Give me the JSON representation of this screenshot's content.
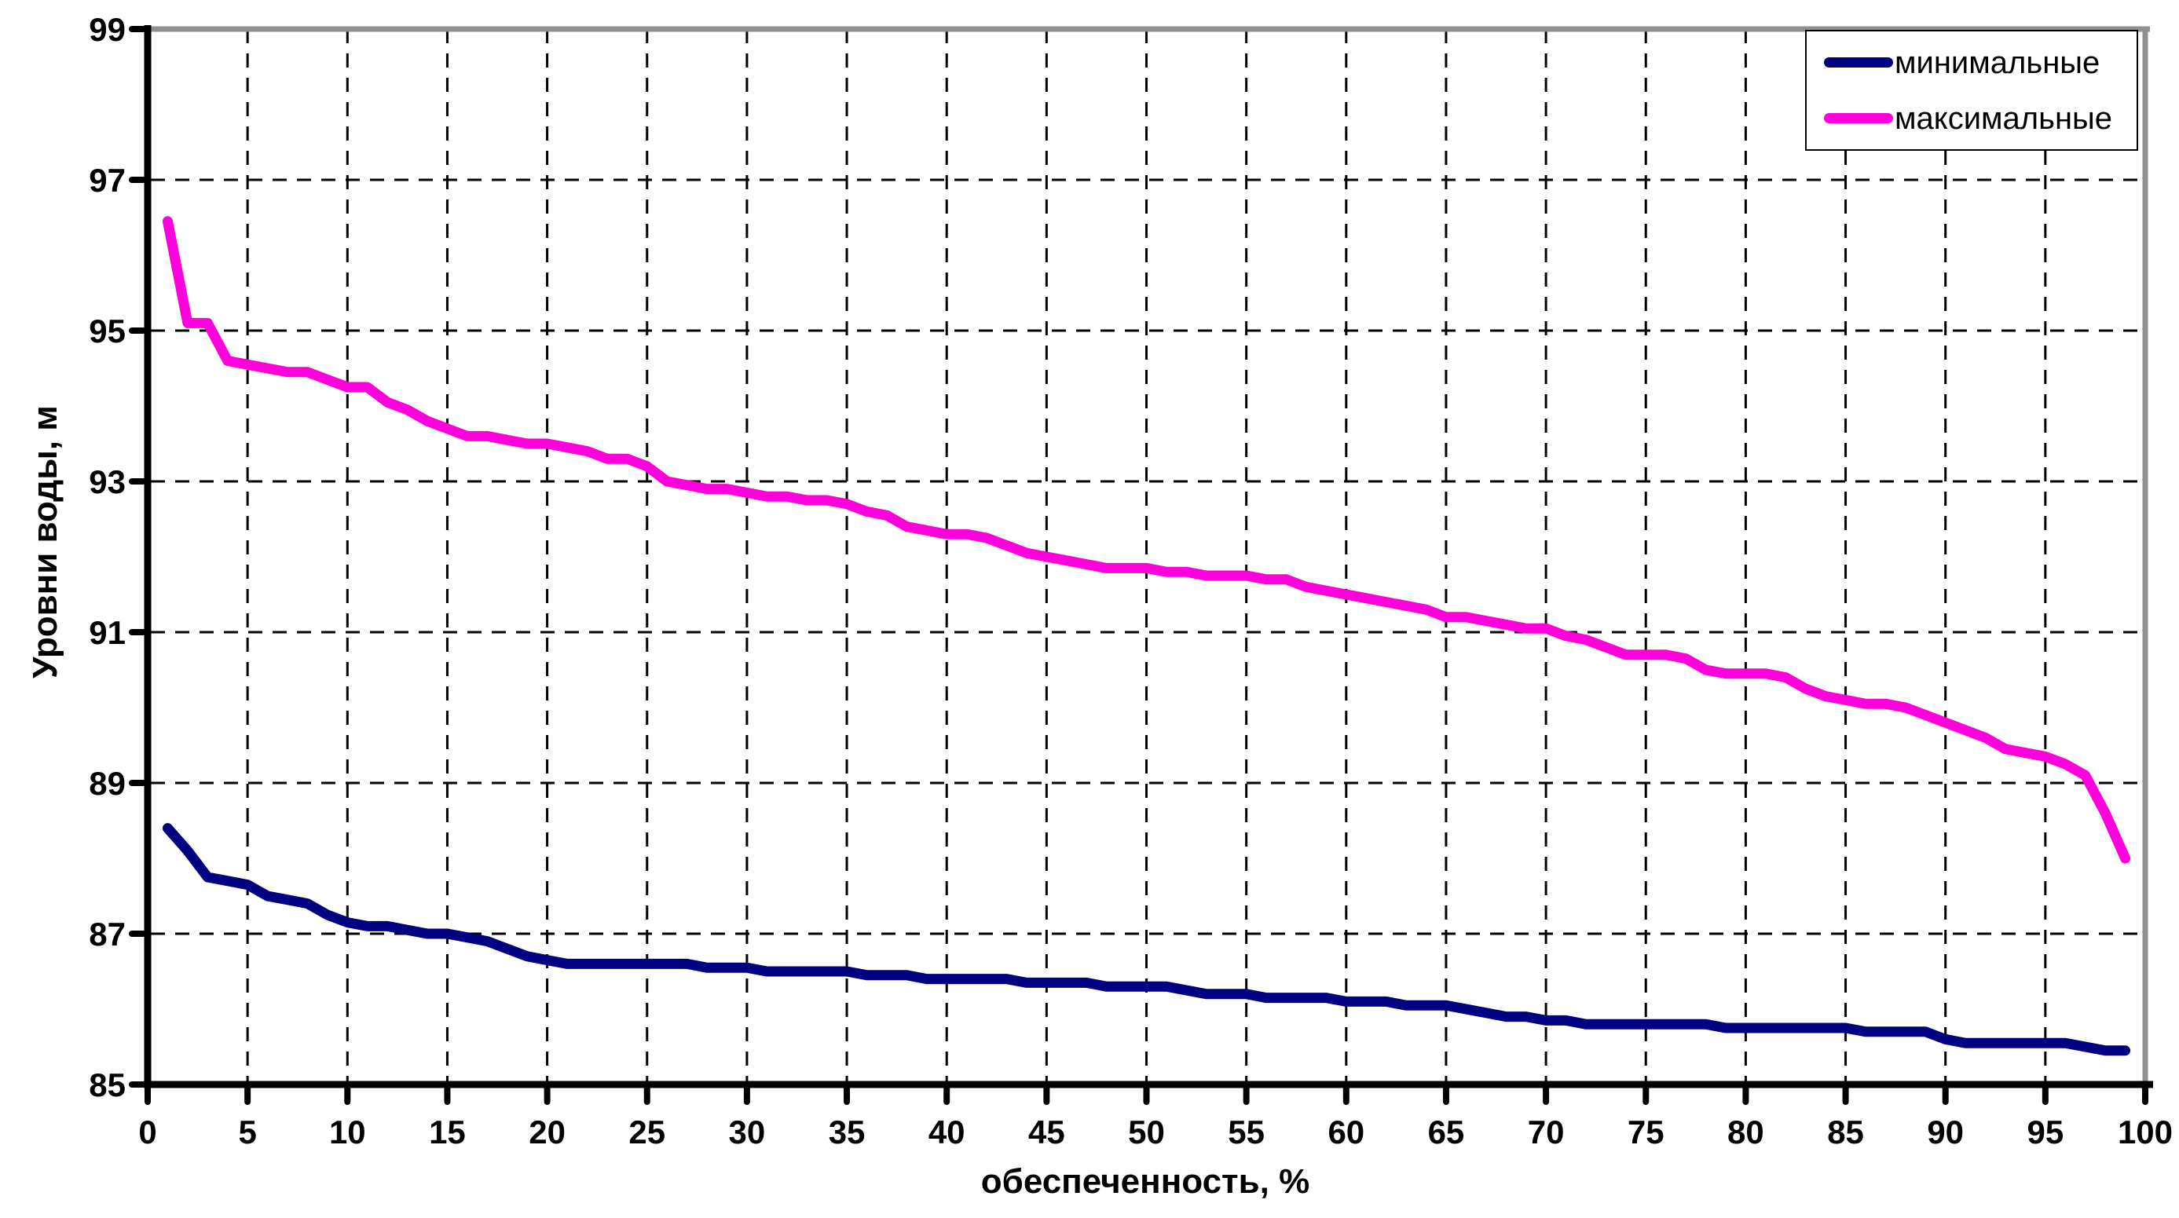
{
  "chart_data": {
    "type": "line",
    "title": "",
    "xlabel": "обеспеченность, %",
    "ylabel": "Уровни воды, м",
    "xlim": [
      0,
      100
    ],
    "ylim": [
      85,
      99
    ],
    "x_ticks": [
      0,
      5,
      10,
      15,
      20,
      25,
      30,
      35,
      40,
      45,
      50,
      55,
      60,
      65,
      70,
      75,
      80,
      85,
      90,
      95,
      100
    ],
    "y_ticks": [
      85,
      87,
      89,
      91,
      93,
      95,
      97,
      99
    ],
    "grid": "dashed black; vertical every 5 units, horizontal every 2 units",
    "legend_position": "top-right",
    "colors": {
      "background": "#FFFFFF",
      "gridline": "#000000",
      "axis": "#000000",
      "outer_border": "#909090"
    },
    "x": [
      1,
      2,
      3,
      4,
      5,
      6,
      7,
      8,
      9,
      10,
      11,
      12,
      13,
      14,
      15,
      16,
      17,
      18,
      19,
      20,
      21,
      22,
      23,
      24,
      25,
      26,
      27,
      28,
      29,
      30,
      31,
      32,
      33,
      34,
      35,
      36,
      37,
      38,
      39,
      40,
      41,
      42,
      43,
      44,
      45,
      46,
      47,
      48,
      49,
      50,
      51,
      52,
      53,
      54,
      55,
      56,
      57,
      58,
      59,
      60,
      61,
      62,
      63,
      64,
      65,
      66,
      67,
      68,
      69,
      70,
      71,
      72,
      73,
      74,
      75,
      76,
      77,
      78,
      79,
      80,
      81,
      82,
      83,
      84,
      85,
      86,
      87,
      88,
      89,
      90,
      91,
      92,
      93,
      94,
      95,
      96,
      97,
      98,
      99
    ],
    "series": [
      {
        "name": "минимальные",
        "color": "#000080",
        "values": [
          88.4,
          88.1,
          87.75,
          87.7,
          87.65,
          87.5,
          87.45,
          87.4,
          87.25,
          87.15,
          87.1,
          87.1,
          87.05,
          87.0,
          87.0,
          86.95,
          86.9,
          86.8,
          86.7,
          86.65,
          86.6,
          86.6,
          86.6,
          86.6,
          86.6,
          86.6,
          86.6,
          86.55,
          86.55,
          86.55,
          86.5,
          86.5,
          86.5,
          86.5,
          86.5,
          86.45,
          86.45,
          86.45,
          86.4,
          86.4,
          86.4,
          86.4,
          86.4,
          86.35,
          86.35,
          86.35,
          86.35,
          86.3,
          86.3,
          86.3,
          86.3,
          86.25,
          86.2,
          86.2,
          86.2,
          86.15,
          86.15,
          86.15,
          86.15,
          86.1,
          86.1,
          86.1,
          86.05,
          86.05,
          86.05,
          86.0,
          85.95,
          85.9,
          85.9,
          85.85,
          85.85,
          85.8,
          85.8,
          85.8,
          85.8,
          85.8,
          85.8,
          85.8,
          85.75,
          85.75,
          85.75,
          85.75,
          85.75,
          85.75,
          85.75,
          85.7,
          85.7,
          85.7,
          85.7,
          85.6,
          85.55,
          85.55,
          85.55,
          85.55,
          85.55,
          85.55,
          85.5,
          85.45,
          85.45
        ]
      },
      {
        "name": "максимальные",
        "color": "#FF00DC",
        "values": [
          96.45,
          95.1,
          95.1,
          94.6,
          94.55,
          94.5,
          94.45,
          94.45,
          94.35,
          94.25,
          94.25,
          94.05,
          93.95,
          93.8,
          93.7,
          93.6,
          93.6,
          93.55,
          93.5,
          93.5,
          93.45,
          93.4,
          93.3,
          93.3,
          93.2,
          93.0,
          92.95,
          92.9,
          92.9,
          92.85,
          92.8,
          92.8,
          92.75,
          92.75,
          92.7,
          92.6,
          92.55,
          92.4,
          92.35,
          92.3,
          92.3,
          92.25,
          92.15,
          92.05,
          92.0,
          91.95,
          91.9,
          91.85,
          91.85,
          91.85,
          91.8,
          91.8,
          91.75,
          91.75,
          91.75,
          91.7,
          91.7,
          91.6,
          91.55,
          91.5,
          91.45,
          91.4,
          91.35,
          91.3,
          91.2,
          91.2,
          91.15,
          91.1,
          91.05,
          91.05,
          90.95,
          90.9,
          90.8,
          90.7,
          90.7,
          90.7,
          90.65,
          90.5,
          90.45,
          90.45,
          90.45,
          90.4,
          90.25,
          90.15,
          90.1,
          90.05,
          90.05,
          90.0,
          89.9,
          89.8,
          89.7,
          89.6,
          89.45,
          89.4,
          89.35,
          89.25,
          89.1,
          88.6,
          88.0
        ]
      }
    ]
  }
}
